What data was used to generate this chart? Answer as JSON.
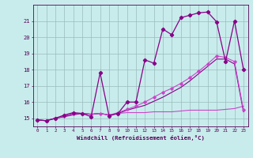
{
  "background_color": "#c8ecec",
  "grid_color": "#aaccaa",
  "line_color_dark": "#880088",
  "line_color_mid": "#aa00aa",
  "line_color_light": "#cc44cc",
  "xlabel": "Windchill (Refroidissement éolien,°C)",
  "yticks": [
    15,
    16,
    17,
    18,
    19,
    20,
    21
  ],
  "xlim": [
    -0.5,
    23.5
  ],
  "ylim": [
    14.5,
    22.0
  ],
  "series1_x": [
    0,
    1,
    2,
    3,
    4,
    5,
    6,
    7,
    8,
    9,
    10,
    11,
    12,
    13,
    14,
    15,
    16,
    17,
    18,
    19,
    20,
    21,
    22,
    23
  ],
  "series1_y": [
    14.9,
    14.85,
    15.0,
    15.2,
    15.35,
    15.3,
    15.1,
    17.8,
    15.15,
    15.3,
    16.0,
    16.0,
    18.6,
    18.4,
    20.5,
    20.15,
    21.2,
    21.35,
    21.5,
    21.55,
    20.95,
    18.5,
    21.0,
    18.0
  ],
  "series2_x": [
    0,
    1,
    2,
    3,
    4,
    5,
    6,
    7,
    8,
    9,
    10,
    11,
    12,
    13,
    14,
    15,
    16,
    17,
    18,
    19,
    20,
    21,
    22,
    23
  ],
  "series2_y": [
    14.9,
    14.85,
    15.0,
    15.15,
    15.3,
    15.3,
    15.25,
    15.3,
    15.2,
    15.35,
    15.55,
    15.75,
    16.0,
    16.3,
    16.6,
    16.85,
    17.15,
    17.5,
    17.9,
    18.35,
    18.85,
    18.75,
    18.5,
    15.5
  ],
  "series3_x": [
    0,
    1,
    2,
    3,
    4,
    5,
    6,
    7,
    8,
    9,
    10,
    11,
    12,
    13,
    14,
    15,
    16,
    17,
    18,
    19,
    20,
    21,
    22,
    23
  ],
  "series3_y": [
    14.9,
    14.85,
    15.0,
    15.1,
    15.25,
    15.3,
    15.25,
    15.3,
    15.2,
    15.3,
    15.5,
    15.65,
    15.8,
    16.05,
    16.3,
    16.6,
    16.9,
    17.3,
    17.75,
    18.2,
    18.65,
    18.65,
    18.35,
    15.4
  ],
  "series4_x": [
    0,
    1,
    2,
    3,
    4,
    5,
    6,
    7,
    8,
    9,
    10,
    11,
    12,
    13,
    14,
    15,
    16,
    17,
    18,
    19,
    20,
    21,
    22,
    23
  ],
  "series4_y": [
    14.9,
    14.85,
    15.0,
    15.1,
    15.2,
    15.3,
    15.25,
    15.3,
    15.2,
    15.3,
    15.35,
    15.35,
    15.35,
    15.4,
    15.4,
    15.4,
    15.45,
    15.5,
    15.5,
    15.5,
    15.5,
    15.55,
    15.6,
    15.75
  ]
}
